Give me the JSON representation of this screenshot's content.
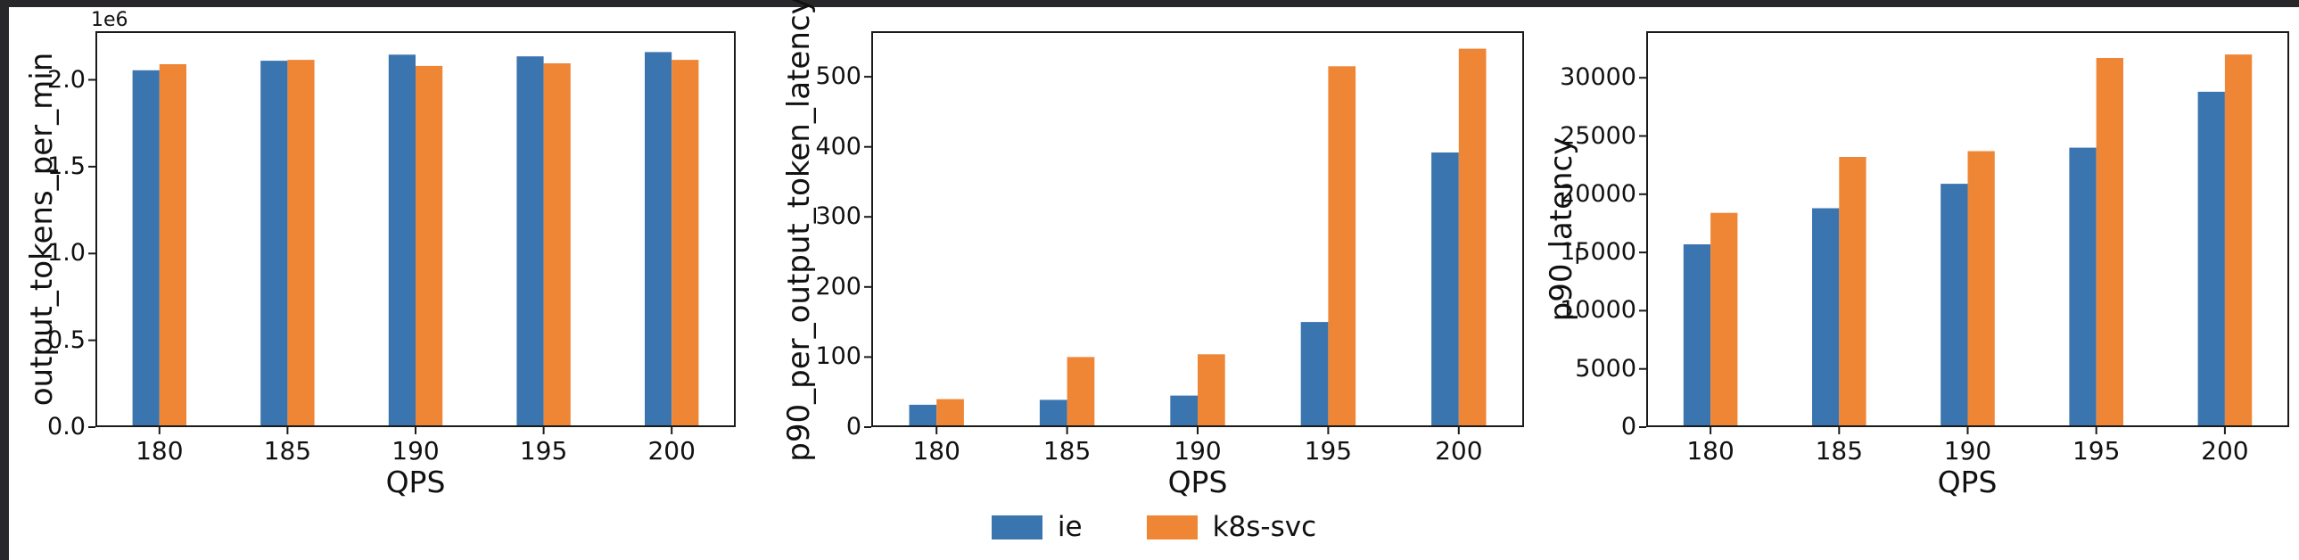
{
  "figure": {
    "background": "#ffffff",
    "frame_color": "#28282b",
    "axis_color": "#1a1a1a",
    "text_color": "#111111"
  },
  "colors": {
    "ie": "#3b75af",
    "k8s_svc": "#ef8636"
  },
  "legend": {
    "position": "bottom-center",
    "items": [
      {
        "label": "ie",
        "color": "#3b75af"
      },
      {
        "label": "k8s-svc",
        "color": "#ef8636"
      }
    ]
  },
  "chart_data": [
    {
      "type": "bar",
      "title": "",
      "ylabel": "output_tokens_per_min",
      "xlabel": "QPS",
      "offset_label": "1e6",
      "categories": [
        "180",
        "185",
        "190",
        "195",
        "200"
      ],
      "series": [
        {
          "name": "ie",
          "values": [
            2055000,
            2110000,
            2145000,
            2135000,
            2160000
          ]
        },
        {
          "name": "k8s-svc",
          "values": [
            2090000,
            2115000,
            2080000,
            2095000,
            2115000
          ]
        }
      ],
      "ylim": [
        0,
        2280000
      ],
      "yticks": {
        "values": [
          0,
          500000,
          1000000,
          1500000,
          2000000
        ],
        "labels": [
          "0.0",
          "0.5",
          "1.0",
          "1.5",
          "2.0"
        ]
      },
      "grid": false,
      "legend_position": "none"
    },
    {
      "type": "bar",
      "title": "",
      "ylabel": "p90_per_output_token_latency",
      "xlabel": "QPS",
      "offset_label": "",
      "categories": [
        "180",
        "185",
        "190",
        "195",
        "200"
      ],
      "series": [
        {
          "name": "ie",
          "values": [
            32,
            39,
            45,
            150,
            392
          ]
        },
        {
          "name": "k8s-svc",
          "values": [
            40,
            100,
            104,
            515,
            540
          ]
        }
      ],
      "ylim": [
        0,
        565
      ],
      "yticks": {
        "values": [
          0,
          100,
          200,
          300,
          400,
          500
        ],
        "labels": [
          "0",
          "100",
          "200",
          "300",
          "400",
          "500"
        ]
      },
      "grid": false,
      "legend_position": "below-center"
    },
    {
      "type": "bar",
      "title": "",
      "ylabel": "p90_latency",
      "xlabel": "QPS",
      "offset_label": "",
      "categories": [
        "180",
        "185",
        "190",
        "195",
        "200"
      ],
      "series": [
        {
          "name": "ie",
          "values": [
            15700,
            18800,
            20900,
            24000,
            28800
          ]
        },
        {
          "name": "k8s-svc",
          "values": [
            18400,
            23200,
            23700,
            31700,
            32000
          ]
        }
      ],
      "ylim": [
        0,
        34000
      ],
      "yticks": {
        "values": [
          0,
          5000,
          10000,
          15000,
          20000,
          25000,
          30000
        ],
        "labels": [
          "0",
          "5000",
          "10000",
          "15000",
          "20000",
          "25000",
          "30000"
        ]
      },
      "grid": false,
      "legend_position": "none"
    }
  ]
}
